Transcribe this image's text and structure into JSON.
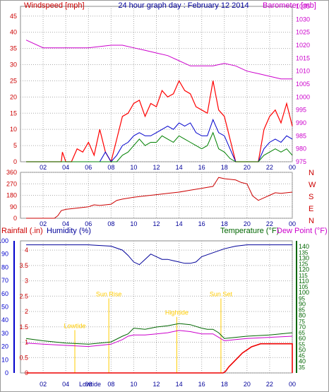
{
  "title": "24 hour graph day : February 12 2014",
  "x_ticks": [
    "02",
    "04",
    "06",
    "08",
    "10",
    "12",
    "14",
    "16",
    "18",
    "20",
    "22",
    "00"
  ],
  "bottom_x_ticks": [
    "02",
    "04",
    "06",
    "08",
    "10",
    "12",
    "14",
    "16",
    "18",
    "20",
    "22",
    "00"
  ],
  "bottom_x_lowtide": "Lowtide",
  "colors": {
    "wind": "#ff0000",
    "avg": "#0000cc",
    "green": "#008000",
    "baro": "#cc00cc",
    "dir": "#cc0000",
    "hum": "#000099",
    "temp": "#006600",
    "dew": "#cc00cc",
    "rain": "#ee0000",
    "event": "#ffcc00",
    "axis_red": "#cc0000",
    "axis_blue": "#0000cc",
    "axis_green": "#006600",
    "axis_mag": "#cc00cc",
    "grid": "#aaaaaa"
  },
  "chart_data": [
    {
      "type": "line",
      "title": "24 hour graph day : February 12 2014",
      "left_label": "Windspeed [mph]",
      "right_label": "Barometer [mb]",
      "left_ticks": [
        0,
        5,
        10,
        15,
        20,
        25,
        30,
        35,
        40,
        45
      ],
      "right_ticks": [
        975,
        980,
        985,
        990,
        995,
        1000,
        1005,
        1010,
        1015,
        1020,
        1025,
        1030,
        1035
      ],
      "left_ylim": [
        0,
        48
      ],
      "right_ylim": [
        975,
        1035
      ],
      "series": [
        {
          "kind": "baro",
          "x": [
            0.5,
            2,
            4,
            6,
            8,
            9,
            10,
            11,
            12,
            13,
            14,
            15,
            16,
            17,
            18,
            19,
            20,
            21,
            22,
            23,
            24
          ],
          "values": [
            1022,
            1019,
            1019,
            1019,
            1020,
            1020,
            1019,
            1018,
            1017,
            1016,
            1014,
            1012,
            1012,
            1012,
            1013,
            1012,
            1010,
            1009,
            1008,
            1007,
            1007
          ]
        },
        {
          "kind": "wind",
          "x": [
            0.5,
            3.0,
            3.6,
            3.7,
            4.0,
            4.5,
            5.0,
            5.5,
            6.0,
            6.5,
            7.0,
            7.5,
            8.0,
            8.5,
            9.0,
            9.5,
            10.0,
            10.5,
            11.0,
            11.5,
            12.0,
            12.5,
            13.0,
            13.5,
            14.0,
            14.5,
            15.0,
            15.5,
            16.0,
            16.5,
            17.0,
            17.5,
            18.0,
            18.5,
            19.0,
            19.5,
            20.0,
            20.5,
            21.0,
            21.5,
            22.0,
            22.5,
            23.0,
            23.5,
            24.0
          ],
          "values": [
            0,
            0,
            0,
            3,
            0,
            0,
            4,
            3,
            6,
            2,
            10,
            3,
            0,
            7,
            14,
            15,
            18,
            19,
            14,
            18,
            17,
            22,
            20,
            21,
            25,
            22,
            21,
            17,
            16,
            15,
            25,
            16,
            14,
            7,
            0,
            0,
            0,
            0,
            0,
            10,
            14,
            16,
            12,
            18,
            11
          ]
        },
        {
          "kind": "avg",
          "x": [
            0.5,
            7.0,
            7.5,
            8.0,
            8.5,
            9.0,
            9.5,
            10.0,
            10.5,
            11.0,
            11.5,
            12.0,
            12.5,
            13.0,
            13.5,
            14.0,
            14.5,
            15.0,
            15.5,
            16.0,
            16.5,
            17.0,
            17.5,
            18.0,
            18.5,
            19.0,
            19.5,
            20.0,
            21.0,
            21.5,
            22.0,
            22.5,
            23.0,
            23.5,
            24.0
          ],
          "values": [
            0,
            0,
            3,
            0,
            2,
            5,
            6,
            8,
            9,
            8,
            8,
            9,
            10,
            11,
            10,
            12,
            11,
            12,
            9,
            8,
            8,
            13,
            9,
            8,
            4,
            0,
            0,
            0,
            0,
            4,
            6,
            7,
            6,
            8,
            7
          ]
        },
        {
          "kind": "green",
          "x": [
            0.5,
            8.5,
            9.0,
            9.5,
            10.0,
            10.5,
            11.0,
            11.5,
            12.0,
            12.5,
            13.0,
            13.5,
            14.0,
            14.5,
            15.0,
            15.5,
            16.0,
            16.5,
            17.0,
            17.5,
            18.0,
            18.5,
            19.0,
            20.0,
            21.0,
            21.5,
            22.0,
            22.5,
            23.0,
            23.5,
            24.0
          ],
          "values": [
            0,
            0,
            2,
            3,
            5,
            7,
            5,
            6,
            6,
            8,
            7,
            6,
            8,
            7,
            6,
            5,
            4,
            5,
            9,
            4,
            3,
            1,
            0,
            0,
            0,
            2,
            3,
            4,
            3,
            4,
            2
          ]
        }
      ]
    },
    {
      "type": "line",
      "right_labels": [
        "N",
        "W",
        "S",
        "E",
        "N"
      ],
      "left_ticks": [
        0,
        90,
        180,
        270,
        360
      ],
      "ylim": [
        0,
        360
      ],
      "series": [
        {
          "kind": "dir",
          "x": [
            0.5,
            3.0,
            3.3,
            3.6,
            4.0,
            5.0,
            6.0,
            6.5,
            7.0,
            8.0,
            8.5,
            9.0,
            10.0,
            11.0,
            12.0,
            13.0,
            14.0,
            15.0,
            16.0,
            17.0,
            17.5,
            18.0,
            18.5,
            19.0,
            19.5,
            20.0,
            20.5,
            21.0,
            21.5,
            22.0,
            22.5,
            23.0,
            24.0
          ],
          "values": [
            0,
            0,
            20,
            60,
            70,
            80,
            90,
            105,
            100,
            110,
            140,
            150,
            165,
            175,
            185,
            195,
            205,
            220,
            235,
            250,
            320,
            310,
            305,
            300,
            280,
            270,
            175,
            140,
            160,
            180,
            200,
            195,
            205
          ]
        }
      ]
    },
    {
      "type": "line",
      "left_labels": [
        "Rainfall (.in)",
        "Humidity (%)"
      ],
      "right_labels": [
        "Temperature (°F)",
        "Dew Point (°F)"
      ],
      "rain_ticks": [
        "0",
        "0.5",
        "1",
        "1.5",
        "2",
        "2.5",
        "3",
        "3.5",
        "4"
      ],
      "hum_ticks": [
        0,
        10,
        20,
        30,
        40,
        50,
        60,
        70,
        80,
        90,
        100
      ],
      "temp_ticks": [
        40,
        50,
        60,
        70,
        80,
        90,
        100,
        110,
        120,
        130,
        140
      ],
      "right_ticks_minor": [
        35,
        45,
        55,
        65,
        75,
        85,
        95,
        105,
        115,
        125,
        135
      ],
      "hum_ylim": [
        0,
        100
      ],
      "temp_ylim": [
        30,
        145
      ],
      "events": [
        {
          "label": "Lowtide",
          "x": 4.8,
          "y": 34
        },
        {
          "label": "Sun Rise",
          "x": 7.8,
          "y": 58
        },
        {
          "label": "Hightide",
          "x": 13.8,
          "y": 44
        },
        {
          "label": "Sun Set",
          "x": 17.7,
          "y": 58
        }
      ],
      "series": [
        {
          "kind": "hum",
          "x": [
            0.5,
            2,
            4,
            6,
            8,
            9,
            9.5,
            10,
            10.5,
            11,
            11.5,
            12,
            12.5,
            13,
            13.5,
            14,
            14.5,
            15,
            15.5,
            16,
            17,
            18,
            19,
            20,
            22,
            24
          ],
          "values": [
            97,
            97,
            97,
            97,
            96,
            93,
            89,
            84,
            82,
            86,
            90,
            88,
            86,
            86,
            85,
            84,
            83,
            83,
            84,
            88,
            91,
            94,
            96,
            97,
            97,
            97
          ]
        },
        {
          "kind": "temp",
          "x": [
            0.5,
            2,
            4,
            6,
            7,
            8,
            9,
            9.5,
            10,
            11,
            12,
            13,
            14,
            15,
            16,
            16.5,
            17,
            17.5,
            18,
            19,
            20,
            22,
            24
          ],
          "values": [
            60,
            58,
            56,
            55,
            56,
            57,
            62,
            64,
            69,
            68,
            70,
            71,
            73,
            72,
            69,
            68,
            68,
            65,
            60,
            61,
            62,
            63,
            65
          ]
        },
        {
          "kind": "dew",
          "x": [
            0.5,
            2,
            4,
            6,
            7,
            8,
            9,
            9.5,
            10,
            11,
            12,
            13,
            14,
            15,
            16,
            16.5,
            17,
            17.5,
            18,
            19,
            20,
            22,
            24
          ],
          "values": [
            56,
            55,
            54,
            53,
            54,
            55,
            59,
            62,
            63,
            63,
            64,
            65,
            67,
            66,
            64,
            64,
            64,
            61,
            58,
            59,
            60,
            61,
            62
          ]
        },
        {
          "kind": "rain",
          "x": [
            0.5,
            17.9,
            18.1,
            18.4,
            18.8,
            19.2,
            19.6,
            20,
            20.4,
            20.8,
            21.2,
            22,
            23,
            23.9,
            24,
            24
          ],
          "values": [
            0,
            0,
            0.05,
            0.2,
            0.35,
            0.5,
            0.65,
            0.75,
            0.85,
            0.9,
            0.95,
            0.95,
            0.95,
            0.95,
            0.95,
            0
          ]
        }
      ]
    }
  ]
}
